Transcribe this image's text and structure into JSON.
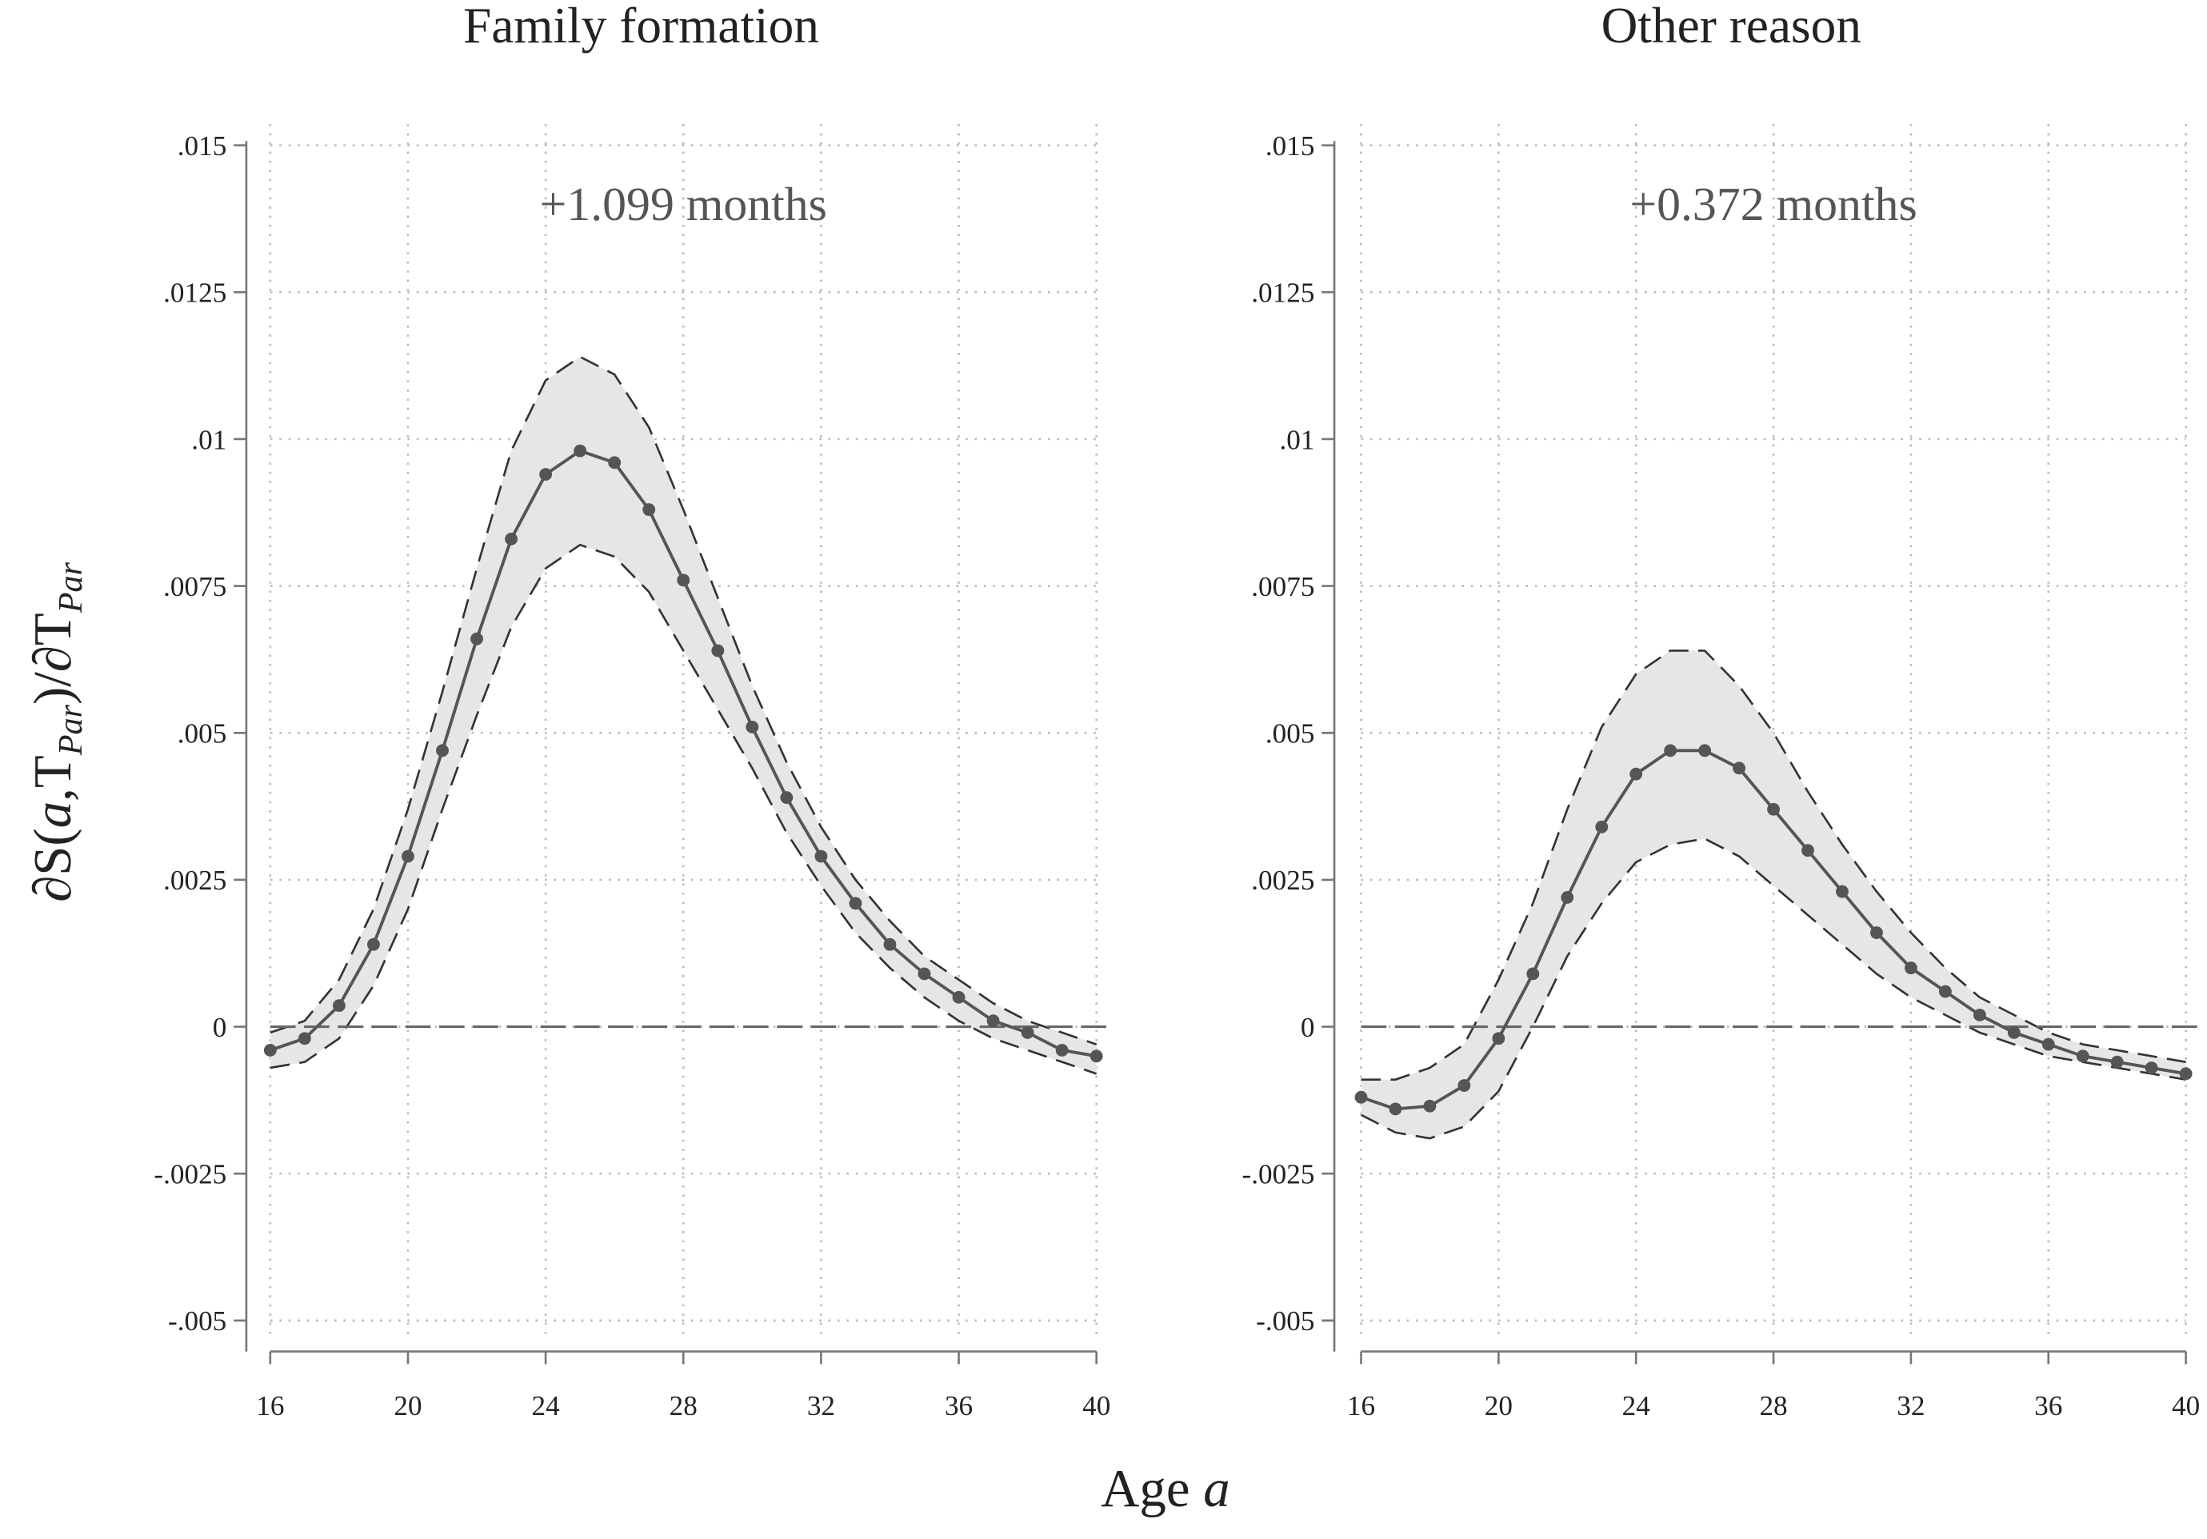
{
  "figure": {
    "xlabel": [
      "Age ",
      "a"
    ],
    "ylabel": [
      "∂S(",
      "a",
      ",T",
      "Par",
      ")/∂T",
      "Par"
    ]
  },
  "chart_data": [
    {
      "type": "line",
      "title": "Family formation",
      "annotation": "+1.099 months",
      "x": [
        16,
        17,
        18,
        19,
        20,
        21,
        22,
        23,
        24,
        25,
        26,
        27,
        28,
        29,
        30,
        31,
        32,
        33,
        34,
        35,
        36,
        37,
        38,
        39,
        40
      ],
      "values": [
        -0.0004,
        -0.0002,
        0.00036,
        0.0014,
        0.0029,
        0.0047,
        0.0066,
        0.0083,
        0.0094,
        0.0098,
        0.0096,
        0.0088,
        0.0076,
        0.0064,
        0.0051,
        0.0039,
        0.0029,
        0.0021,
        0.0014,
        0.0009,
        0.0005,
        0.0001,
        -0.0001,
        -0.0004,
        -0.0005
      ],
      "ci_upper": [
        -0.0001,
        0.0001,
        0.0008,
        0.002,
        0.0037,
        0.0057,
        0.0078,
        0.0098,
        0.011,
        0.0114,
        0.0111,
        0.0102,
        0.0088,
        0.0073,
        0.0058,
        0.0045,
        0.0034,
        0.0025,
        0.0018,
        0.0012,
        0.0008,
        0.0004,
        0.0001,
        -0.0001,
        -0.0003
      ],
      "ci_lower": [
        -0.0007,
        -0.0006,
        -0.0002,
        0.0007,
        0.002,
        0.0037,
        0.0053,
        0.0068,
        0.0078,
        0.0082,
        0.008,
        0.0074,
        0.0064,
        0.0054,
        0.0044,
        0.0033,
        0.0024,
        0.0016,
        0.001,
        0.0005,
        0.0001,
        -0.0002,
        -0.0004,
        -0.0006,
        -0.0008
      ],
      "color": "#555555",
      "band_color": "#e6e6e6",
      "hline": 0,
      "xlim": [
        16,
        40
      ],
      "xticks": [
        16,
        20,
        24,
        28,
        32,
        36,
        40
      ],
      "ylim": [
        -0.005,
        0.015
      ],
      "yticks": [
        {
          "value": 0.015,
          "label": ".015"
        },
        {
          "value": 0.0125,
          "label": ".0125"
        },
        {
          "value": 0.01,
          "label": ".01"
        },
        {
          "value": 0.0075,
          "label": ".0075"
        },
        {
          "value": 0.005,
          "label": ".005"
        },
        {
          "value": 0.0025,
          "label": ".0025"
        },
        0,
        {
          "value": -0.0025,
          "label": "-.0025"
        },
        {
          "value": -0.005,
          "label": "-.005"
        }
      ],
      "grid": true
    },
    {
      "type": "line",
      "title": "Other reason",
      "annotation": "+0.372 months",
      "x": [
        16,
        17,
        18,
        19,
        20,
        21,
        22,
        23,
        24,
        25,
        26,
        27,
        28,
        29,
        30,
        31,
        32,
        33,
        34,
        35,
        36,
        37,
        38,
        39,
        40
      ],
      "values": [
        -0.0012,
        -0.0014,
        -0.00135,
        -0.001,
        -0.0002,
        0.0009,
        0.0022,
        0.0034,
        0.0043,
        0.0047,
        0.0047,
        0.0044,
        0.0037,
        0.003,
        0.0023,
        0.0016,
        0.001,
        0.0006,
        0.0002,
        -0.0001,
        -0.0003,
        -0.0005,
        -0.0006,
        -0.0007,
        -0.0008
      ],
      "ci_upper": [
        -0.0009,
        -0.0009,
        -0.0007,
        -0.0003,
        0.0008,
        0.0021,
        0.0037,
        0.0051,
        0.006,
        0.0064,
        0.0064,
        0.0058,
        0.005,
        0.004,
        0.0031,
        0.0023,
        0.0016,
        0.001,
        0.0005,
        0.0002,
        -0.0001,
        -0.0003,
        -0.0004,
        -0.0005,
        -0.0006
      ],
      "ci_lower": [
        -0.0015,
        -0.0018,
        -0.0019,
        -0.0017,
        -0.0011,
        0,
        0.0012,
        0.0021,
        0.0028,
        0.0031,
        0.0032,
        0.0029,
        0.0024,
        0.0019,
        0.0014,
        0.0009,
        0.0005,
        0.0002,
        -0.0001,
        -0.0003,
        -0.0005,
        -0.0006,
        -0.0007,
        -0.0008,
        -0.0009
      ],
      "color": "#555555",
      "band_color": "#e6e6e6",
      "hline": 0,
      "xlim": [
        16,
        40
      ],
      "xticks": [
        16,
        20,
        24,
        28,
        32,
        36,
        40
      ],
      "ylim": [
        -0.005,
        0.015
      ],
      "yticks": [
        {
          "value": 0.015,
          "label": ".015"
        },
        {
          "value": 0.0125,
          "label": ".0125"
        },
        {
          "value": 0.01,
          "label": ".01"
        },
        {
          "value": 0.0075,
          "label": ".0075"
        },
        {
          "value": 0.005,
          "label": ".005"
        },
        {
          "value": 0.0025,
          "label": ".0025"
        },
        0,
        {
          "value": -0.0025,
          "label": "-.0025"
        },
        {
          "value": -0.005,
          "label": "-.005"
        }
      ],
      "grid": true
    }
  ]
}
